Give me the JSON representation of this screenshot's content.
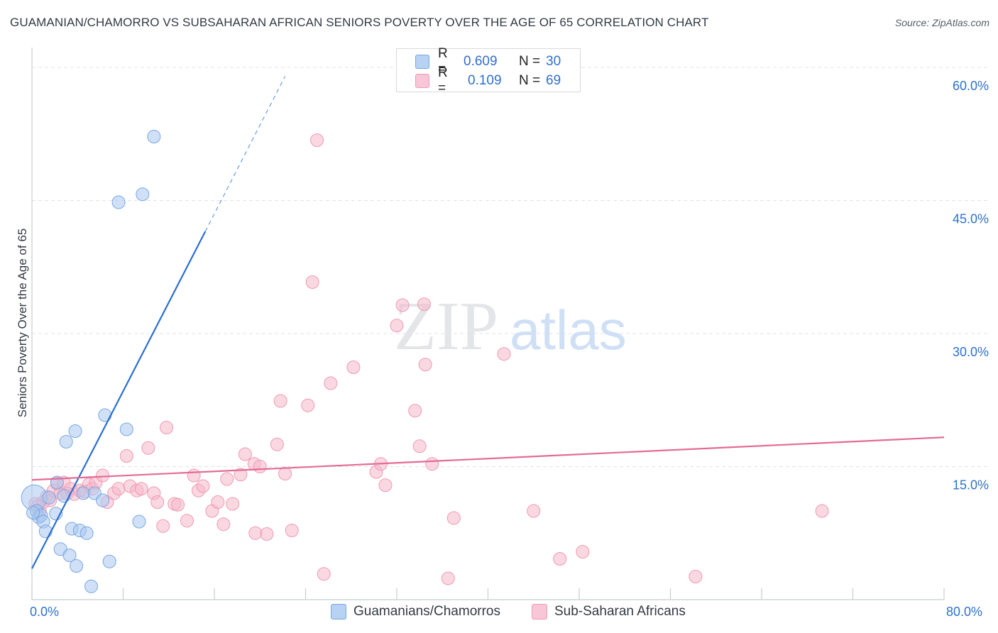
{
  "title": "GUAMANIAN/CHAMORRO VS SUBSAHARAN AFRICAN SENIORS POVERTY OVER THE AGE OF 65 CORRELATION CHART",
  "source": "Source: ZipAtlas.com",
  "watermark": {
    "zip": "ZIP",
    "atlas": "atlas"
  },
  "legend": {
    "rows": [
      {
        "r_label": "R =",
        "r_value": "0.609",
        "n_label": "N =",
        "n_value": "30"
      },
      {
        "r_label": "R =",
        "r_value": "0.109",
        "n_label": "N =",
        "n_value": "69"
      }
    ]
  },
  "bottom_legend": {
    "series1": "Guamanians/Chamorros",
    "series2": "Sub-Saharan Africans"
  },
  "colors": {
    "blue_fill": "#aac8f0",
    "blue_stroke": "#7aa6e0",
    "blue_line": "#2a6fd0",
    "pink_fill": "#f6b8cb",
    "pink_stroke": "#ee9ab4",
    "pink_line": "#e36b96",
    "tick_text": "#2f6fd0",
    "grid": "#dfe3e8"
  },
  "chart_data": {
    "type": "scatter",
    "title": "GUAMANIAN/CHAMORRO VS SUBSAHARAN AFRICAN SENIORS POVERTY OVER THE AGE OF 65 CORRELATION CHART",
    "xlabel": "",
    "ylabel": "Seniors Poverty Over the Age of 65",
    "xlim": [
      0,
      80
    ],
    "ylim": [
      0,
      60
    ],
    "x_tick_labels": [
      "0.0%",
      "80.0%"
    ],
    "y_ticks": [
      15,
      30,
      45,
      60
    ],
    "y_tick_labels": [
      "15.0%",
      "30.0%",
      "45.0%",
      "60.0%"
    ],
    "series": [
      {
        "name": "Guamanians/Chamorros",
        "R": 0.609,
        "N": 30,
        "trend": {
          "x0": 0,
          "y0": 3.5,
          "x1": 15.2,
          "y1": 41.5,
          "dash_to_x": 22.2
        },
        "points": [
          [
            0.2,
            11.5
          ],
          [
            0.4,
            10.0
          ],
          [
            0.6,
            9.3
          ],
          [
            0.8,
            9.5
          ],
          [
            1.0,
            8.8
          ],
          [
            1.2,
            7.7
          ],
          [
            1.5,
            11.5
          ],
          [
            2.1,
            9.7
          ],
          [
            2.2,
            13.2
          ],
          [
            2.5,
            5.7
          ],
          [
            2.8,
            11.7
          ],
          [
            3.0,
            17.8
          ],
          [
            3.3,
            5.0
          ],
          [
            3.5,
            8.0
          ],
          [
            3.8,
            19.0
          ],
          [
            3.9,
            3.8
          ],
          [
            4.2,
            7.8
          ],
          [
            4.5,
            12.0
          ],
          [
            4.8,
            7.5
          ],
          [
            5.2,
            1.5
          ],
          [
            5.5,
            12.0
          ],
          [
            6.2,
            11.2
          ],
          [
            6.4,
            20.8
          ],
          [
            6.8,
            4.3
          ],
          [
            7.6,
            44.8
          ],
          [
            8.3,
            19.2
          ],
          [
            9.4,
            8.8
          ],
          [
            9.7,
            45.7
          ],
          [
            10.7,
            52.2
          ],
          [
            0.1,
            9.8
          ]
        ]
      },
      {
        "name": "Sub-Saharan Africans",
        "R": 0.109,
        "N": 69,
        "trend": {
          "x0": 0,
          "y0": 13.5,
          "x1": 80,
          "y1": 18.3
        },
        "points": [
          [
            0.3,
            10.8
          ],
          [
            0.5,
            10.5
          ],
          [
            0.7,
            10.0
          ],
          [
            1.0,
            11.0
          ],
          [
            1.3,
            11.6
          ],
          [
            1.6,
            11.2
          ],
          [
            1.9,
            12.3
          ],
          [
            2.2,
            13.1
          ],
          [
            2.5,
            12.0
          ],
          [
            2.8,
            13.2
          ],
          [
            3.1,
            12.0
          ],
          [
            3.4,
            12.5
          ],
          [
            3.7,
            11.9
          ],
          [
            4.2,
            12.3
          ],
          [
            4.6,
            12.2
          ],
          [
            5.0,
            13.0
          ],
          [
            5.3,
            12.5
          ],
          [
            5.6,
            13.2
          ],
          [
            6.2,
            14.0
          ],
          [
            6.6,
            11.0
          ],
          [
            7.2,
            12.0
          ],
          [
            7.6,
            12.5
          ],
          [
            8.3,
            16.2
          ],
          [
            8.6,
            12.8
          ],
          [
            9.2,
            12.3
          ],
          [
            9.6,
            12.5
          ],
          [
            10.2,
            17.1
          ],
          [
            10.7,
            12.0
          ],
          [
            11.0,
            11.0
          ],
          [
            11.5,
            8.3
          ],
          [
            11.8,
            19.4
          ],
          [
            12.5,
            10.8
          ],
          [
            12.8,
            10.7
          ],
          [
            13.6,
            8.9
          ],
          [
            14.2,
            14.0
          ],
          [
            14.6,
            12.3
          ],
          [
            15.0,
            12.8
          ],
          [
            15.8,
            10.0
          ],
          [
            16.3,
            11.0
          ],
          [
            16.8,
            8.5
          ],
          [
            17.1,
            13.6
          ],
          [
            17.6,
            10.8
          ],
          [
            18.3,
            14.1
          ],
          [
            18.7,
            16.4
          ],
          [
            19.5,
            15.3
          ],
          [
            20.0,
            15.0
          ],
          [
            19.6,
            7.5
          ],
          [
            20.6,
            7.4
          ],
          [
            21.5,
            17.5
          ],
          [
            21.8,
            22.4
          ],
          [
            22.2,
            14.2
          ],
          [
            22.8,
            7.8
          ],
          [
            24.2,
            21.9
          ],
          [
            24.6,
            35.8
          ],
          [
            25.0,
            51.8
          ],
          [
            25.6,
            2.9
          ],
          [
            26.2,
            24.4
          ],
          [
            28.2,
            26.2
          ],
          [
            30.2,
            14.4
          ],
          [
            30.6,
            15.3
          ],
          [
            31.0,
            12.9
          ],
          [
            32.5,
            33.2
          ],
          [
            33.6,
            21.3
          ],
          [
            34.0,
            17.3
          ],
          [
            34.5,
            26.5
          ],
          [
            35.1,
            15.3
          ],
          [
            36.5,
            2.4
          ],
          [
            37.0,
            9.2
          ],
          [
            44.0,
            10.0
          ]
        ],
        "extra_points": [
          [
            41.4,
            27.7
          ],
          [
            34.4,
            33.3
          ],
          [
            32.0,
            30.9
          ],
          [
            46.3,
            4.6
          ],
          [
            48.3,
            5.4
          ],
          [
            58.2,
            2.6
          ],
          [
            69.3,
            10.0
          ]
        ]
      }
    ]
  }
}
